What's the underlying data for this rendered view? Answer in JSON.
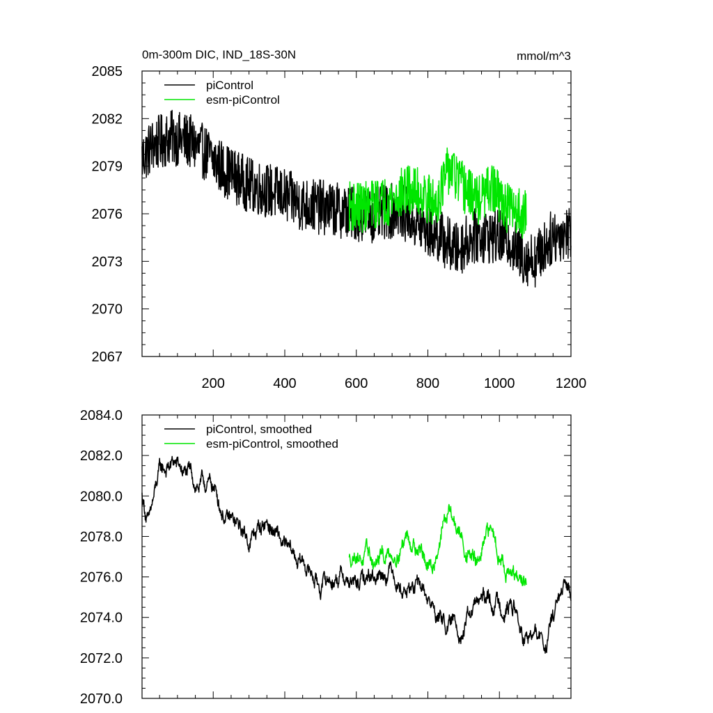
{
  "chart_data": [
    {
      "type": "line",
      "title": "0m-300m DIC, IND_18S-30N",
      "units_label": "mmol/m^3",
      "xlim": [
        1,
        1200
      ],
      "ylim": [
        2067,
        2085
      ],
      "x_ticks": [
        200,
        400,
        600,
        800,
        1000,
        1200
      ],
      "x_tick_labels": [
        "200",
        "400",
        "600",
        "800",
        "1000",
        "1200"
      ],
      "y_ticks": [
        2067,
        2070,
        2073,
        2076,
        2079,
        2082,
        2085
      ],
      "y_tick_labels": [
        "2067",
        "2070",
        "2073",
        "2076",
        "2079",
        "2082",
        "2085"
      ],
      "grid": false,
      "legend_position": "top-left",
      "series": [
        {
          "name": "piControl",
          "color": "#000000",
          "x_start": 1,
          "x_end": 1200,
          "noise_amplitude": 3.5,
          "anchors": [
            [
              1,
              2079.5
            ],
            [
              30,
              2080.3
            ],
            [
              80,
              2080.8
            ],
            [
              130,
              2080.6
            ],
            [
              180,
              2079.8
            ],
            [
              230,
              2078.8
            ],
            [
              300,
              2077.8
            ],
            [
              380,
              2077.3
            ],
            [
              450,
              2076.6
            ],
            [
              530,
              2076.3
            ],
            [
              600,
              2076.0
            ],
            [
              650,
              2075.9
            ],
            [
              720,
              2076.3
            ],
            [
              780,
              2075.2
            ],
            [
              830,
              2074.6
            ],
            [
              880,
              2073.7
            ],
            [
              930,
              2074.6
            ],
            [
              980,
              2074.6
            ],
            [
              1030,
              2074.3
            ],
            [
              1060,
              2073.3
            ],
            [
              1100,
              2073.1
            ],
            [
              1150,
              2074.6
            ],
            [
              1200,
              2074.9
            ]
          ]
        },
        {
          "name": "esm-piControl",
          "color": "#00e600",
          "x_start": 580,
          "x_end": 1075,
          "noise_amplitude": 3.2,
          "anchors": [
            [
              580,
              2076.5
            ],
            [
              620,
              2076.4
            ],
            [
              660,
              2076.7
            ],
            [
              700,
              2076.9
            ],
            [
              740,
              2077.5
            ],
            [
              780,
              2077.3
            ],
            [
              820,
              2076.6
            ],
            [
              860,
              2078.9
            ],
            [
              900,
              2077.6
            ],
            [
              940,
              2076.8
            ],
            [
              980,
              2077.6
            ],
            [
              1020,
              2076.4
            ],
            [
              1050,
              2076.2
            ],
            [
              1075,
              2075.9
            ]
          ]
        }
      ]
    },
    {
      "type": "line",
      "title": "",
      "xlim": [
        1,
        1200
      ],
      "ylim": [
        2070.0,
        2084.0
      ],
      "x_ticks": [
        200,
        400,
        600,
        800,
        1000,
        1200
      ],
      "y_ticks": [
        2070.0,
        2072.0,
        2074.0,
        2076.0,
        2078.0,
        2080.0,
        2082.0,
        2084.0
      ],
      "y_tick_labels": [
        "2070.0",
        "2072.0",
        "2074.0",
        "2076.0",
        "2078.0",
        "2080.0",
        "2082.0",
        "2084.0"
      ],
      "grid": false,
      "legend_position": "top-left",
      "series": [
        {
          "name": "piControl, smoothed",
          "color": "#000000",
          "x_start": 1,
          "x_end": 1200,
          "noise_amplitude": 1.8,
          "anchors": [
            [
              1,
              2080.0
            ],
            [
              20,
              2078.6
            ],
            [
              50,
              2081.0
            ],
            [
              90,
              2081.6
            ],
            [
              150,
              2080.6
            ],
            [
              200,
              2080.4
            ],
            [
              240,
              2078.8
            ],
            [
              300,
              2077.8
            ],
            [
              350,
              2078.8
            ],
            [
              410,
              2077.0
            ],
            [
              460,
              2076.6
            ],
            [
              500,
              2075.6
            ],
            [
              560,
              2076.2
            ],
            [
              600,
              2075.4
            ],
            [
              650,
              2076.2
            ],
            [
              700,
              2076.6
            ],
            [
              730,
              2075.6
            ],
            [
              790,
              2075.2
            ],
            [
              820,
              2074.2
            ],
            [
              860,
              2073.6
            ],
            [
              900,
              2073.6
            ],
            [
              940,
              2074.6
            ],
            [
              990,
              2074.8
            ],
            [
              1040,
              2074.6
            ],
            [
              1070,
              2072.6
            ],
            [
              1100,
              2073.0
            ],
            [
              1130,
              2072.6
            ],
            [
              1160,
              2074.6
            ],
            [
              1200,
              2075.2
            ]
          ]
        },
        {
          "name": "esm-piControl, smoothed",
          "color": "#00e600",
          "x_start": 580,
          "x_end": 1075,
          "noise_amplitude": 1.8,
          "anchors": [
            [
              580,
              2076.8
            ],
            [
              600,
              2077.4
            ],
            [
              650,
              2076.6
            ],
            [
              700,
              2077.2
            ],
            [
              740,
              2078.2
            ],
            [
              780,
              2077.6
            ],
            [
              810,
              2076.0
            ],
            [
              840,
              2078.6
            ],
            [
              860,
              2079.2
            ],
            [
              900,
              2077.6
            ],
            [
              940,
              2076.6
            ],
            [
              980,
              2078.2
            ],
            [
              1020,
              2076.6
            ],
            [
              1050,
              2075.6
            ],
            [
              1075,
              2075.8
            ]
          ]
        }
      ]
    }
  ]
}
